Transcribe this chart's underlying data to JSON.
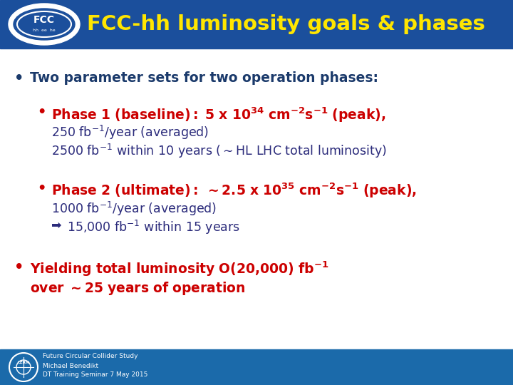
{
  "title": "FCC-hh luminosity goals & phases",
  "title_color": "#FFE600",
  "header_bg_color": "#1B4F9C",
  "body_bg_color": "#FFFFFF",
  "footer_bg_color": "#1B6AAA",
  "footer_lines": [
    "Future Circular Collider Study",
    "Michael Benedikt",
    "DT Training Seminar 7 May 2015"
  ],
  "bullet1_color": "#1B3A6B",
  "bullet1_text": "Two parameter sets for two operation phases:",
  "phase_color": "#CC0000",
  "body_text_color": "#2B2B7B",
  "bullet3_color": "#CC0000"
}
